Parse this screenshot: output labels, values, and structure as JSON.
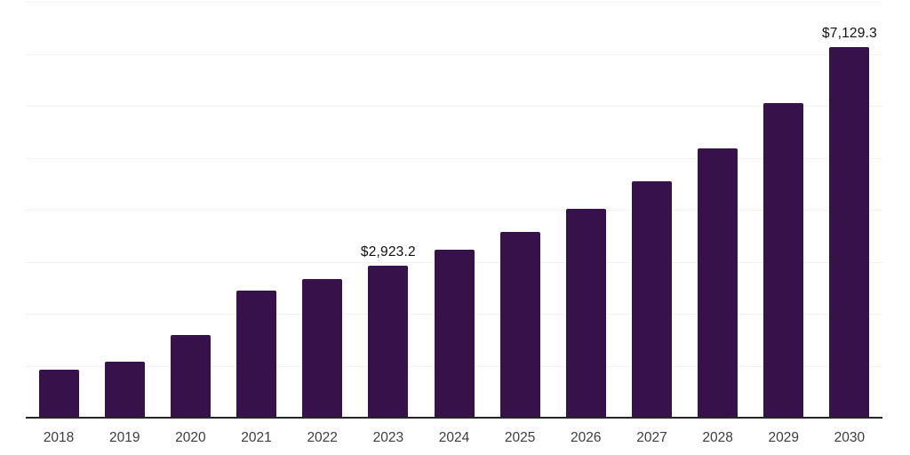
{
  "chart_data": {
    "type": "bar",
    "title": "",
    "xlabel": "",
    "ylabel": "",
    "categories": [
      "2018",
      "2019",
      "2020",
      "2021",
      "2022",
      "2023",
      "2024",
      "2025",
      "2026",
      "2027",
      "2028",
      "2029",
      "2030"
    ],
    "values": [
      920,
      1080,
      1590,
      2445,
      2665,
      2923.2,
      3230,
      3575,
      4010,
      4545,
      5180,
      6050,
      7129.3
    ],
    "data_labels": {
      "2023": "$2,923.2",
      "2030": "$7,129.3"
    },
    "ylim": [
      0,
      8000
    ],
    "gridline_step": 1000,
    "grid": "horizontal",
    "legend": "none",
    "colors": {
      "bar": "#37114A",
      "gridline": "#f2f2f2",
      "axis_line": "#262626",
      "tick_label": "#3d3d3d",
      "value_label": "#111111",
      "background": "#ffffff"
    }
  }
}
